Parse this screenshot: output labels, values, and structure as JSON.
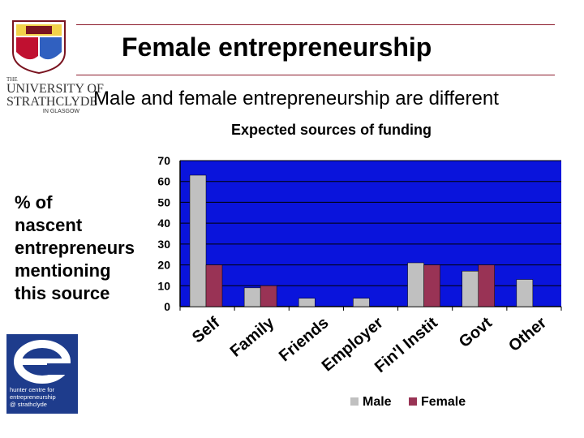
{
  "slide": {
    "title": "Female entrepreneurship",
    "subtitle": "Male and female entrepreneurship are different",
    "y_label_lines": [
      "% of",
      "nascent",
      "entrepreneurs",
      "mentioning",
      "this source"
    ]
  },
  "logos": {
    "university": {
      "line1": "THE",
      "line2a": "UNIVERSITY OF",
      "line2b": "STRATHCLYDE",
      "line3": "IN GLASGOW"
    },
    "hunter": {
      "lines": [
        "hunter centre for",
        "entrepreneurship",
        "@ strathclyde"
      ]
    }
  },
  "colors": {
    "plot_bg": "#0a14dc",
    "male": "#c0c0c0",
    "female": "#993355",
    "rule": "#8b1a2b"
  },
  "chart_data": {
    "type": "bar",
    "title": "Expected sources of funding",
    "categories": [
      "Self",
      "Family",
      "Friends",
      "Employer",
      "Fin'l Instit",
      "Govt",
      "Other"
    ],
    "series": [
      {
        "name": "Male",
        "values": [
          63,
          9,
          4,
          4,
          21,
          17,
          13
        ]
      },
      {
        "name": "Female",
        "values": [
          20,
          10,
          null,
          null,
          20,
          20,
          null
        ]
      }
    ],
    "ylim": [
      0,
      70
    ],
    "yticks": [
      0,
      10,
      20,
      30,
      40,
      50,
      60,
      70
    ],
    "grid": true,
    "legend": "bottom"
  }
}
